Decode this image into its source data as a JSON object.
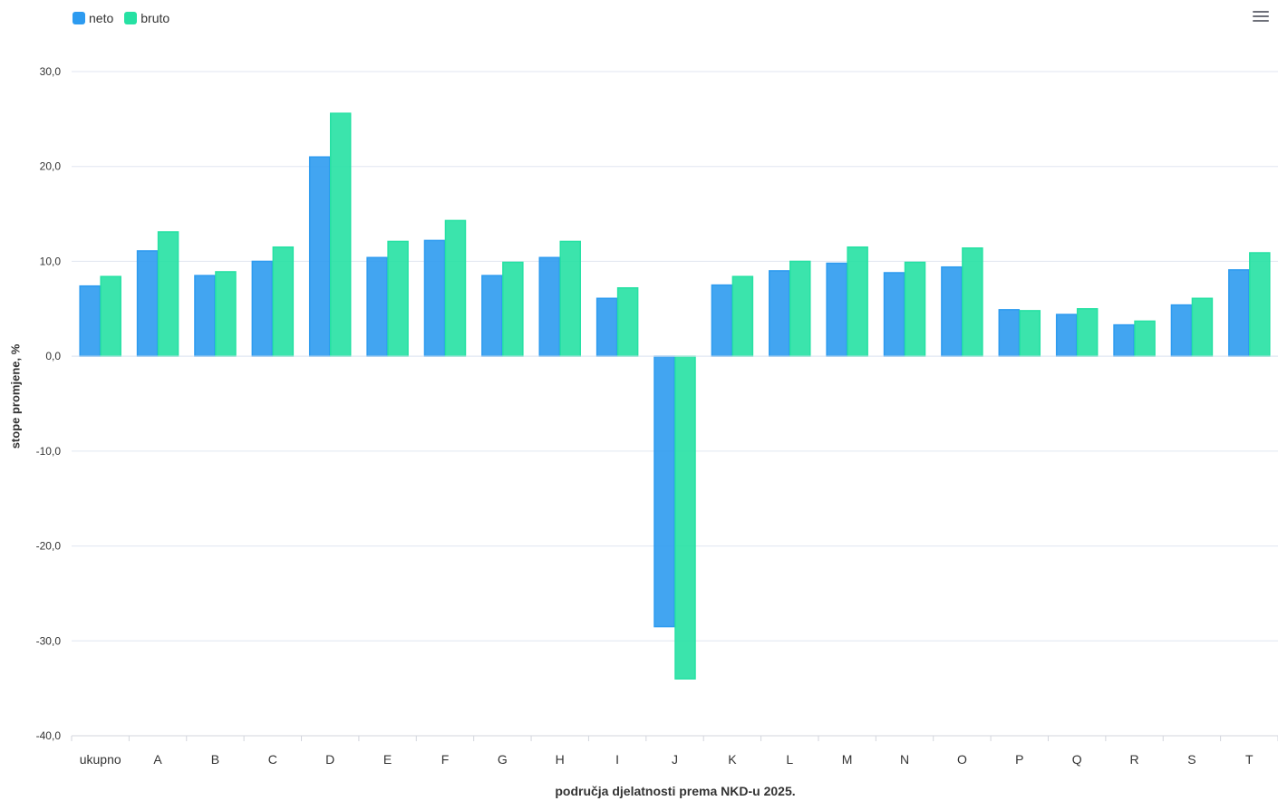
{
  "legend": {
    "neto": "neto",
    "bruto": "bruto"
  },
  "toolbar": {
    "menu_icon": "hamburger-menu-icon"
  },
  "chart_data": {
    "type": "bar",
    "categories": [
      "ukupno",
      "A",
      "B",
      "C",
      "D",
      "E",
      "F",
      "G",
      "H",
      "I",
      "J",
      "K",
      "L",
      "M",
      "N",
      "O",
      "P",
      "Q",
      "R",
      "S",
      "T"
    ],
    "series": [
      {
        "name": "neto",
        "color": "#2d9bf0",
        "values": [
          7.4,
          11.1,
          8.5,
          10.0,
          21.0,
          10.4,
          12.2,
          8.5,
          10.4,
          6.1,
          -28.5,
          7.5,
          9.0,
          9.8,
          8.8,
          9.4,
          4.9,
          4.4,
          3.3,
          5.4,
          9.1
        ]
      },
      {
        "name": "bruto",
        "color": "#26e1a3",
        "values": [
          8.4,
          13.1,
          8.9,
          11.5,
          25.6,
          12.1,
          14.3,
          9.9,
          12.1,
          7.2,
          -34.0,
          8.4,
          10.0,
          11.5,
          9.9,
          11.4,
          4.8,
          5.0,
          3.7,
          6.1,
          10.9
        ]
      }
    ],
    "yticks": [
      "30,0",
      "20,0",
      "10,0",
      "0,0",
      "-10,0",
      "-20,0",
      "-30,0",
      "-40,0"
    ],
    "ylim": [
      -40,
      30
    ],
    "ylabel": "stope promjene, %",
    "xlabel": "područja djelatnosti prema NKD-u 2025.",
    "grid": true,
    "legend_position": "top-left"
  }
}
